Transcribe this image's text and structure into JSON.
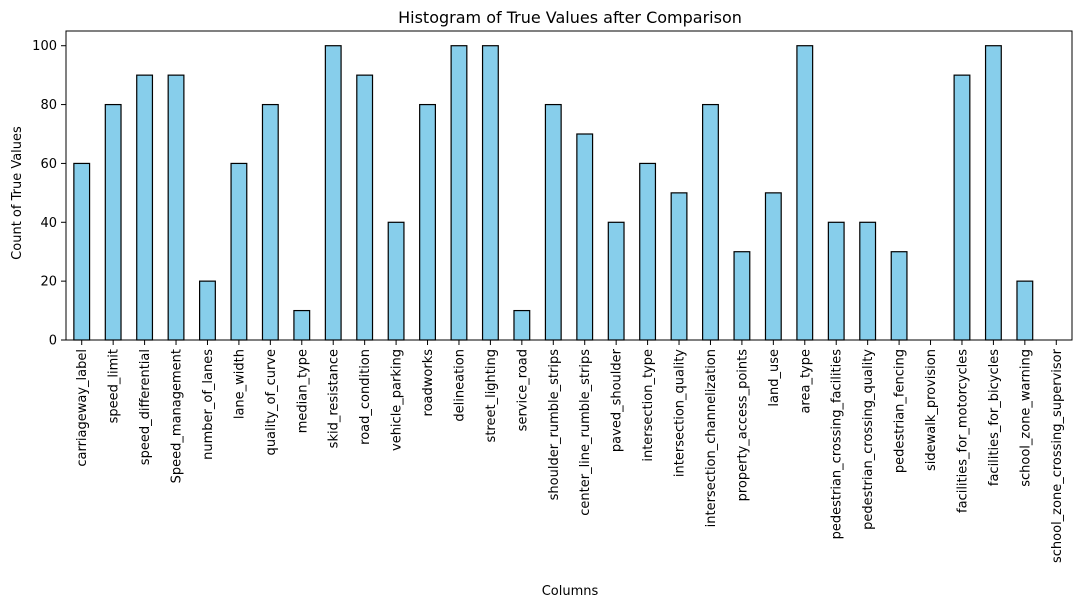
{
  "chart_data": {
    "type": "bar",
    "title": "Histogram of True Values after Comparison",
    "xlabel": "Columns",
    "ylabel": "Count of True Values",
    "ylim": [
      0,
      105
    ],
    "yticks": [
      0,
      20,
      40,
      60,
      80,
      100
    ],
    "grid": false,
    "categories": [
      "carriageway_label",
      "speed_limit",
      "speed_differential",
      "Speed_management",
      "number_of_lanes",
      "lane_width",
      "quality_of_curve",
      "median_type",
      "skid_resistance",
      "road_condition",
      "vehicle_parking",
      "roadworks",
      "delineation",
      "street_lighting",
      "service_road",
      "shoulder_rumble_strips",
      "center_line_rumble_strips",
      "paved_shoulder",
      "intersection_type",
      "intersection_quality",
      "intersection_channelization",
      "property_access_points",
      "land_use",
      "area_type",
      "pedestrian_crossing_facilities",
      "pedestrian_crossing_quality",
      "pedestrian_fencing",
      "sidewalk_provision",
      "facilities_for_motorcycles",
      "facilities_for_bicycles",
      "school_zone_warning",
      "school_zone_crossing_supervisor"
    ],
    "values": [
      60,
      80,
      90,
      90,
      20,
      60,
      80,
      10,
      100,
      90,
      40,
      80,
      100,
      100,
      10,
      80,
      70,
      40,
      60,
      50,
      80,
      30,
      50,
      100,
      40,
      40,
      30,
      0,
      90,
      100,
      20,
      0
    ],
    "bar_color": "#87ceeb",
    "edge_color": "#000000"
  }
}
